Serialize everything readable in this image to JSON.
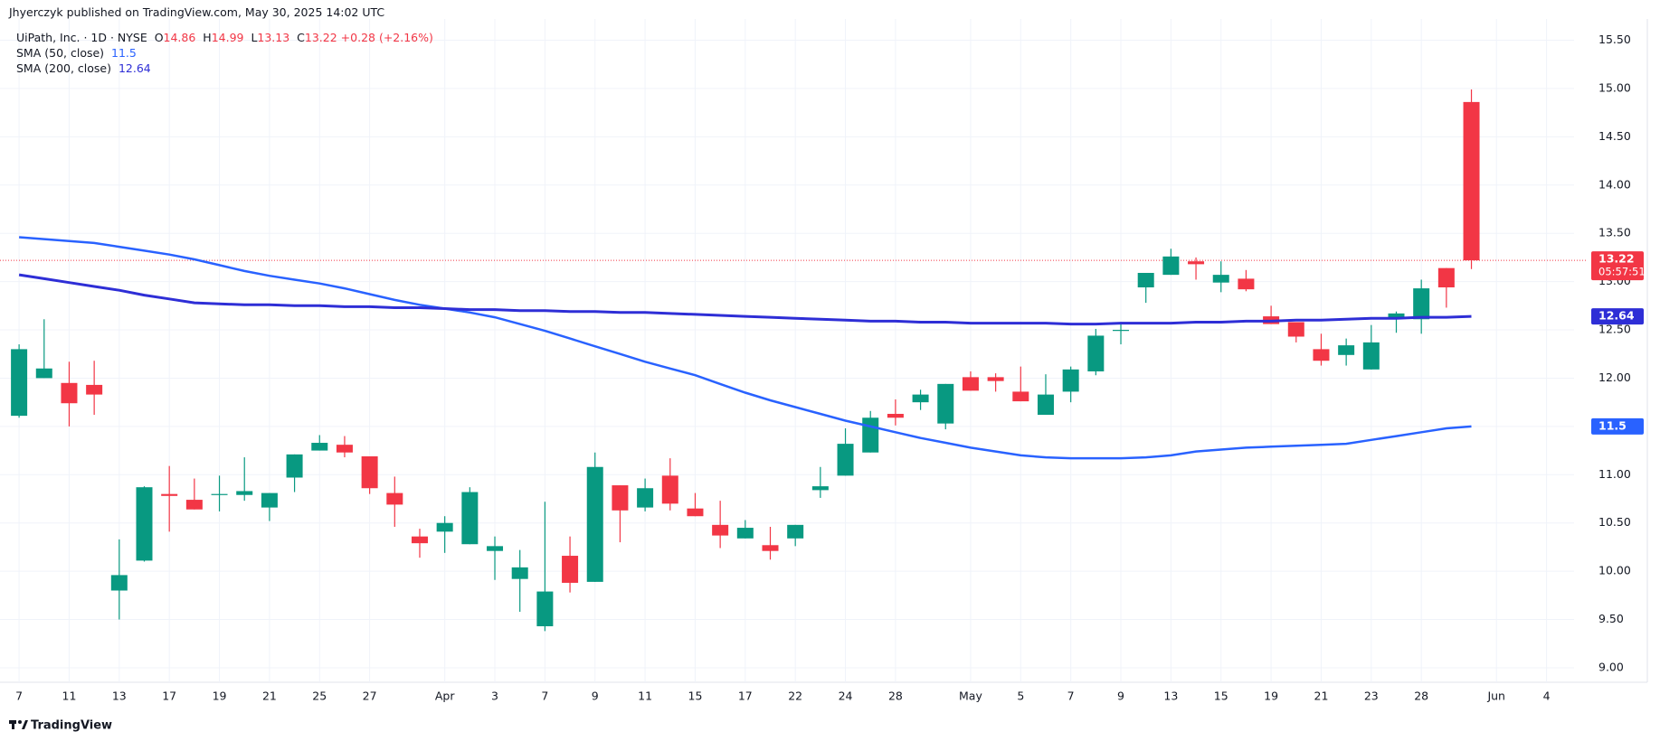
{
  "chart_data": {
    "type": "candlestick",
    "publisher": "Jhyerczyk published on TradingView.com, May 30, 2025 14:02 UTC",
    "title": "UiPath, Inc. · 1D · NYSE",
    "ohlc_labels": [
      "O",
      "H",
      "L",
      "C"
    ],
    "change": "+0.28 (+2.16%)",
    "countdown": "05:57:51",
    "brand": "TradingView",
    "up_color": "#089981",
    "down_color": "#f23645",
    "grid": true,
    "categories": [
      "7",
      null,
      "11",
      null,
      "13",
      null,
      "17",
      null,
      "19",
      null,
      "21",
      null,
      "25",
      null,
      "27",
      null,
      null,
      "Apr",
      null,
      "3",
      null,
      "7",
      null,
      "9",
      null,
      "11",
      null,
      "15",
      null,
      "17",
      null,
      "22",
      null,
      "24",
      null,
      "28",
      null,
      null,
      "May",
      null,
      "5",
      null,
      "7",
      null,
      "9",
      null,
      "13",
      null,
      "15",
      null,
      "19",
      null,
      "21",
      null,
      "23",
      null,
      "28",
      null,
      null,
      "Jun",
      null,
      "4"
    ],
    "open": [
      11.61,
      12.0,
      11.95,
      11.93,
      9.8,
      10.11,
      10.8,
      10.74,
      10.79,
      10.79,
      10.66,
      10.97,
      11.25,
      11.31,
      11.19,
      10.81,
      10.36,
      10.41,
      10.28,
      10.21,
      9.92,
      9.43,
      10.16,
      9.89,
      10.89,
      10.66,
      10.99,
      10.65,
      10.48,
      10.34,
      10.27,
      10.34,
      10.84,
      10.99,
      11.23,
      11.63,
      11.75,
      11.53,
      12.01,
      12.01,
      11.86,
      11.62,
      11.86,
      12.07,
      12.49,
      12.94,
      13.07,
      13.21,
      12.99,
      13.03,
      12.64,
      12.58,
      12.3,
      12.24,
      12.09,
      12.62,
      12.61,
      13.14,
      14.86,
      null,
      null,
      null
    ],
    "high": [
      12.35,
      12.61,
      12.17,
      12.18,
      10.33,
      10.88,
      11.09,
      10.96,
      10.99,
      11.18,
      10.81,
      11.21,
      11.41,
      11.4,
      11.19,
      10.98,
      10.44,
      10.57,
      10.87,
      10.36,
      10.22,
      10.72,
      10.36,
      11.23,
      10.89,
      10.96,
      11.17,
      10.81,
      10.73,
      10.53,
      10.46,
      10.48,
      11.08,
      11.48,
      11.66,
      11.78,
      11.88,
      11.94,
      12.07,
      12.05,
      12.12,
      12.04,
      12.12,
      12.51,
      12.58,
      13.09,
      13.34,
      13.25,
      13.21,
      13.12,
      12.75,
      12.58,
      12.46,
      12.41,
      12.55,
      12.69,
      13.02,
      13.14,
      14.99,
      null,
      null,
      null
    ],
    "low": [
      11.59,
      12.0,
      11.5,
      11.62,
      9.5,
      10.1,
      10.41,
      10.64,
      10.62,
      10.73,
      10.52,
      10.82,
      11.25,
      11.18,
      10.8,
      10.46,
      10.14,
      10.19,
      10.28,
      9.91,
      9.58,
      9.38,
      9.78,
      9.89,
      10.3,
      10.62,
      10.63,
      10.57,
      10.24,
      10.34,
      10.12,
      10.26,
      10.76,
      10.99,
      11.23,
      11.51,
      11.67,
      11.47,
      11.87,
      11.86,
      11.76,
      11.62,
      11.75,
      12.03,
      12.35,
      12.78,
      13.07,
      13.02,
      12.89,
      12.9,
      12.56,
      12.37,
      12.13,
      12.13,
      12.09,
      12.47,
      12.46,
      12.73,
      13.13,
      null,
      null,
      null
    ],
    "close": [
      12.3,
      12.1,
      11.74,
      11.83,
      9.96,
      10.87,
      10.78,
      10.64,
      10.8,
      10.83,
      10.81,
      11.21,
      11.33,
      11.23,
      10.86,
      10.69,
      10.29,
      10.5,
      10.82,
      10.26,
      10.04,
      9.79,
      9.88,
      11.08,
      10.63,
      10.86,
      10.7,
      10.57,
      10.37,
      10.45,
      10.21,
      10.48,
      10.88,
      11.32,
      11.59,
      11.59,
      11.83,
      11.94,
      11.87,
      11.97,
      11.76,
      11.83,
      12.09,
      12.44,
      12.5,
      13.09,
      13.26,
      13.18,
      13.07,
      12.92,
      12.56,
      12.43,
      12.18,
      12.34,
      12.37,
      12.67,
      12.93,
      12.94,
      13.22,
      null,
      null,
      null
    ],
    "series": [
      {
        "name": "SMA (50, close)",
        "color": "#2962ff",
        "values": [
          13.46,
          13.44,
          13.42,
          13.4,
          13.36,
          13.32,
          13.28,
          13.23,
          13.17,
          13.11,
          13.06,
          13.02,
          12.98,
          12.93,
          12.87,
          12.81,
          12.76,
          12.72,
          12.68,
          12.63,
          12.56,
          12.49,
          12.41,
          12.33,
          12.25,
          12.17,
          12.1,
          12.03,
          11.94,
          11.85,
          11.77,
          11.7,
          11.63,
          11.56,
          11.5,
          11.44,
          11.38,
          11.33,
          11.28,
          11.24,
          11.2,
          11.18,
          11.17,
          11.17,
          11.17,
          11.18,
          11.2,
          11.24,
          11.26,
          11.28,
          11.29,
          11.3,
          11.31,
          11.32,
          11.36,
          11.4,
          11.44,
          11.48,
          11.5,
          null,
          null,
          null
        ]
      },
      {
        "name": "SMA (200, close)",
        "color": "#2e2ed6",
        "values": [
          13.07,
          13.03,
          12.99,
          12.95,
          12.91,
          12.86,
          12.82,
          12.78,
          12.77,
          12.76,
          12.76,
          12.75,
          12.75,
          12.74,
          12.74,
          12.73,
          12.73,
          12.72,
          12.71,
          12.71,
          12.7,
          12.7,
          12.69,
          12.69,
          12.68,
          12.68,
          12.67,
          12.66,
          12.65,
          12.64,
          12.63,
          12.62,
          12.61,
          12.6,
          12.59,
          12.59,
          12.58,
          12.58,
          12.57,
          12.57,
          12.57,
          12.57,
          12.56,
          12.56,
          12.57,
          12.57,
          12.57,
          12.58,
          12.58,
          12.59,
          12.59,
          12.6,
          12.6,
          12.61,
          12.62,
          12.62,
          12.63,
          12.63,
          12.64,
          null,
          null,
          null
        ]
      }
    ],
    "ylim": [
      8.85,
      15.72
    ],
    "yticks": [
      {
        "value": 9,
        "label": "9.00"
      },
      {
        "value": 9.5,
        "label": "9.50"
      },
      {
        "value": 10,
        "label": "10.00"
      },
      {
        "value": 10.5,
        "label": "10.50"
      },
      {
        "value": 11,
        "label": "11.00"
      },
      {
        "value": 11.5,
        "label": "11.50"
      },
      {
        "value": 12,
        "label": "12.00"
      },
      {
        "value": 12.5,
        "label": "12.50"
      },
      {
        "value": 13,
        "label": "13.00"
      },
      {
        "value": 13.5,
        "label": "13.50"
      },
      {
        "value": 14,
        "label": "14.00"
      },
      {
        "value": 14.5,
        "label": "14.50"
      },
      {
        "value": 15,
        "label": "15.00"
      },
      {
        "value": 15.5,
        "label": "15.50"
      }
    ]
  }
}
